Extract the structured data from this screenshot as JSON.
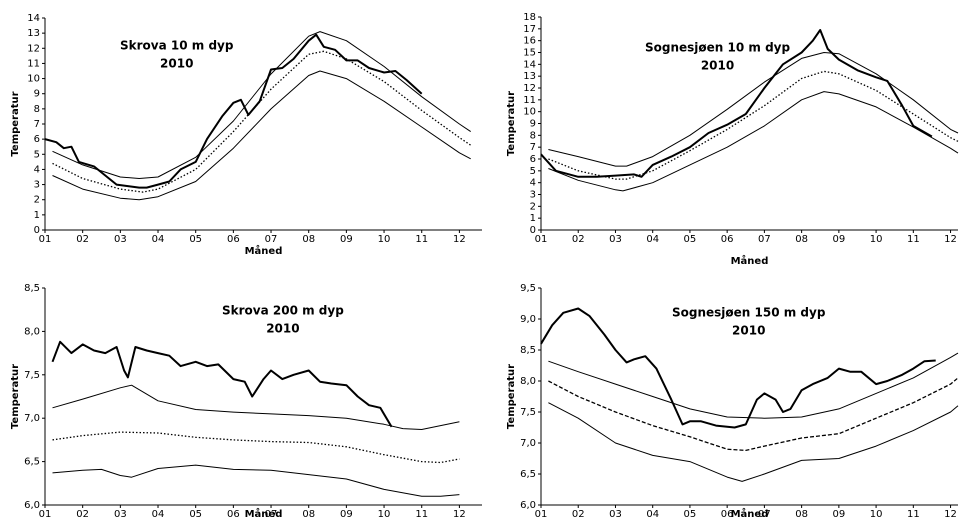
{
  "chart_data": [
    {
      "type": "line",
      "title": "Skrova 10 m dyp",
      "subtitle": "2010",
      "x_label": "Måned",
      "y_label": "Temperatur",
      "xlim": [
        1,
        12.6
      ],
      "xticks": [
        {
          "value": 1,
          "label": "01"
        },
        {
          "value": 2,
          "label": "02"
        },
        {
          "value": 3,
          "label": "03"
        },
        {
          "value": 4,
          "label": "04"
        },
        {
          "value": 5,
          "label": "05"
        },
        {
          "value": 6,
          "label": "06"
        },
        {
          "value": 7,
          "label": "07"
        },
        {
          "value": 8,
          "label": "08"
        },
        {
          "value": 9,
          "label": "09"
        },
        {
          "value": 10,
          "label": "10"
        },
        {
          "value": 11,
          "label": "11"
        },
        {
          "value": 12,
          "label": "12"
        }
      ],
      "ylim": [
        0,
        14
      ],
      "yticks": [
        0,
        1,
        2,
        3,
        4,
        5,
        6,
        7,
        8,
        9,
        10,
        11,
        12,
        13,
        14
      ],
      "series": [
        {
          "color": "#000",
          "width": 2,
          "dash": "solid",
          "x": [
            1,
            1.3,
            1.5,
            1.7,
            1.9,
            2.3,
            2.6,
            2.9,
            3.2,
            3.5,
            3.7,
            4,
            4.3,
            4.6,
            5,
            5.3,
            5.7,
            6,
            6.2,
            6.4,
            6.7,
            7,
            7.3,
            7.6,
            8,
            8.2,
            8.4,
            8.7,
            9,
            9.3,
            9.6,
            10,
            10.3,
            10.6,
            11
          ],
          "values": [
            6,
            5.8,
            5.4,
            5.5,
            4.5,
            4.2,
            3.6,
            3,
            2.9,
            2.8,
            2.8,
            3,
            3.2,
            4,
            4.5,
            6,
            7.5,
            8.4,
            8.6,
            7.6,
            8.5,
            10.6,
            10.7,
            11.3,
            12.5,
            12.9,
            12.1,
            11.9,
            11.2,
            11.2,
            10.7,
            10.4,
            10.5,
            9.9,
            9
          ]
        },
        {
          "color": "#000",
          "width": 1,
          "dash": "solid",
          "x": [
            1.2,
            2,
            3,
            3.5,
            4,
            5,
            6,
            7,
            8,
            8.3,
            9,
            10,
            11,
            12,
            12.3
          ],
          "values": [
            5.2,
            4.3,
            3.5,
            3.4,
            3.5,
            4.8,
            7.2,
            10.3,
            12.8,
            13.1,
            12.5,
            10.8,
            8.8,
            7,
            6.5
          ]
        },
        {
          "color": "#000",
          "width": 1.3,
          "dash": "dotted",
          "x": [
            1.2,
            2,
            3,
            3.6,
            4,
            5,
            6,
            7,
            8,
            8.4,
            9,
            10,
            11,
            12,
            12.3
          ],
          "values": [
            4.4,
            3.4,
            2.7,
            2.5,
            2.7,
            4,
            6.5,
            9.3,
            11.6,
            11.8,
            11.3,
            9.8,
            7.9,
            6.1,
            5.6
          ]
        },
        {
          "color": "#000",
          "width": 1,
          "dash": "solid",
          "x": [
            1.2,
            2,
            3,
            3.5,
            4,
            5,
            6,
            7,
            8,
            8.3,
            9,
            10,
            11,
            12,
            12.3
          ],
          "values": [
            3.6,
            2.7,
            2.1,
            2,
            2.2,
            3.2,
            5.4,
            8,
            10.2,
            10.5,
            10,
            8.5,
            6.8,
            5.1,
            4.7
          ]
        }
      ]
    },
    {
      "type": "line",
      "title": "Sognesjøen 10 m dyp",
      "subtitle": "2010",
      "x_label": "Måned",
      "y_label": "Temperatur",
      "xlim": [
        1,
        12.2
      ],
      "xticks": [
        {
          "value": 1,
          "label": "01"
        },
        {
          "value": 2,
          "label": "02"
        },
        {
          "value": 3,
          "label": "03"
        },
        {
          "value": 4,
          "label": "04"
        },
        {
          "value": 5,
          "label": "05"
        },
        {
          "value": 6,
          "label": "06"
        },
        {
          "value": 7,
          "label": "07"
        },
        {
          "value": 8,
          "label": "08"
        },
        {
          "value": 9,
          "label": "09"
        },
        {
          "value": 10,
          "label": "10"
        },
        {
          "value": 11,
          "label": "11"
        },
        {
          "value": 12,
          "label": "12"
        }
      ],
      "ylim": [
        0,
        18
      ],
      "yticks": [
        0,
        1,
        2,
        3,
        4,
        5,
        6,
        7,
        8,
        9,
        10,
        11,
        12,
        13,
        14,
        15,
        16,
        17,
        18
      ],
      "series": [
        {
          "color": "#000",
          "width": 2,
          "dash": "solid",
          "x": [
            1,
            1.4,
            2,
            2.5,
            3,
            3.5,
            3.7,
            4,
            4.5,
            5,
            5.5,
            6,
            6.5,
            7,
            7.5,
            8,
            8.3,
            8.5,
            8.7,
            9,
            9.5,
            10,
            10.3,
            10.7,
            11,
            11.5
          ],
          "values": [
            6.4,
            5,
            4.5,
            4.5,
            4.6,
            4.7,
            4.5,
            5.5,
            6.2,
            7,
            8.2,
            8.9,
            9.8,
            12,
            14,
            15,
            16,
            16.9,
            15.3,
            14.4,
            13.5,
            12.9,
            12.6,
            10.5,
            8.8,
            7.9
          ]
        },
        {
          "color": "#000",
          "width": 1,
          "dash": "solid",
          "x": [
            1.2,
            2,
            3,
            3.3,
            4,
            5,
            6,
            7,
            8,
            8.6,
            9,
            10,
            11,
            12,
            12.2
          ],
          "values": [
            6.8,
            6.2,
            5.4,
            5.4,
            6.2,
            8,
            10.2,
            12.5,
            14.5,
            15,
            14.9,
            13.2,
            11,
            8.5,
            8.2
          ]
        },
        {
          "color": "#000",
          "width": 1.3,
          "dash": "dotted",
          "x": [
            1.2,
            2,
            3,
            3.3,
            4,
            5,
            6,
            7,
            8,
            8.6,
            9,
            10,
            11,
            12,
            12.2
          ],
          "values": [
            6,
            5,
            4.3,
            4.3,
            5,
            6.7,
            8.5,
            10.5,
            12.8,
            13.4,
            13.2,
            11.8,
            9.8,
            7.8,
            7.5
          ]
        },
        {
          "color": "#000",
          "width": 1,
          "dash": "solid",
          "x": [
            1.2,
            2,
            3,
            3.2,
            4,
            5,
            6,
            7,
            8,
            8.6,
            9,
            10,
            11,
            12,
            12.2
          ],
          "values": [
            5.2,
            4.2,
            3.4,
            3.3,
            4,
            5.5,
            7,
            8.8,
            11,
            11.7,
            11.5,
            10.4,
            8.7,
            6.9,
            6.5
          ]
        }
      ]
    },
    {
      "type": "line",
      "title": "Skrova 200 m dyp",
      "subtitle": "2010",
      "x_label": "Måned",
      "y_label": "Temperatur",
      "xlim": [
        1,
        12.6
      ],
      "xticks": [
        {
          "value": 1,
          "label": "01"
        },
        {
          "value": 2,
          "label": "02"
        },
        {
          "value": 3,
          "label": "03"
        },
        {
          "value": 4,
          "label": "04"
        },
        {
          "value": 5,
          "label": "05"
        },
        {
          "value": 6,
          "label": "06"
        },
        {
          "value": 7,
          "label": "07"
        },
        {
          "value": 8,
          "label": "08"
        },
        {
          "value": 9,
          "label": "09"
        },
        {
          "value": 10,
          "label": "10"
        },
        {
          "value": 11,
          "label": "11"
        },
        {
          "value": 12,
          "label": "12"
        }
      ],
      "ylim": [
        6,
        8.5
      ],
      "yticks": [
        {
          "value": 6,
          "label": "6,0"
        },
        {
          "value": 6.5,
          "label": "6,5"
        },
        {
          "value": 7,
          "label": "7,0"
        },
        {
          "value": 7.5,
          "label": "7,5"
        },
        {
          "value": 8,
          "label": "8,0"
        },
        {
          "value": 8.5,
          "label": "8,5"
        }
      ],
      "series": [
        {
          "color": "#000",
          "width": 2,
          "dash": "solid",
          "x": [
            1.2,
            1.4,
            1.7,
            2,
            2.3,
            2.6,
            2.9,
            3.1,
            3.2,
            3.4,
            3.7,
            4,
            4.3,
            4.6,
            5,
            5.3,
            5.6,
            6,
            6.3,
            6.5,
            6.8,
            7,
            7.3,
            7.6,
            8,
            8.3,
            8.6,
            9,
            9.3,
            9.6,
            9.9,
            10.2
          ],
          "values": [
            7.65,
            7.88,
            7.75,
            7.85,
            7.78,
            7.75,
            7.82,
            7.55,
            7.47,
            7.82,
            7.78,
            7.75,
            7.72,
            7.6,
            7.65,
            7.6,
            7.62,
            7.45,
            7.42,
            7.25,
            7.45,
            7.55,
            7.45,
            7.5,
            7.55,
            7.42,
            7.4,
            7.38,
            7.25,
            7.15,
            7.12,
            6.9
          ]
        },
        {
          "color": "#000",
          "width": 1,
          "dash": "solid",
          "x": [
            1.2,
            2,
            3,
            3.3,
            4,
            5,
            6,
            7,
            8,
            9,
            10,
            10.5,
            11,
            12
          ],
          "values": [
            7.12,
            7.22,
            7.35,
            7.38,
            7.2,
            7.1,
            7.07,
            7.05,
            7.03,
            7,
            6.93,
            6.88,
            6.87,
            6.96
          ]
        },
        {
          "color": "#000",
          "width": 1.3,
          "dash": "dotted",
          "x": [
            1.2,
            2,
            3,
            4,
            5,
            6,
            7,
            8,
            9,
            10,
            11,
            11.5,
            12
          ],
          "values": [
            6.75,
            6.8,
            6.84,
            6.83,
            6.78,
            6.75,
            6.73,
            6.72,
            6.67,
            6.58,
            6.5,
            6.49,
            6.53
          ]
        },
        {
          "color": "#000",
          "width": 1,
          "dash": "solid",
          "x": [
            1.2,
            2,
            2.5,
            3,
            3.3,
            4,
            5,
            6,
            7,
            8,
            9,
            10,
            11,
            11.5,
            12
          ],
          "values": [
            6.37,
            6.4,
            6.41,
            6.34,
            6.32,
            6.42,
            6.46,
            6.41,
            6.4,
            6.35,
            6.3,
            6.18,
            6.1,
            6.1,
            6.12
          ]
        }
      ]
    },
    {
      "type": "line",
      "title": "Sognesjøen 150 m dyp",
      "subtitle": "2010",
      "x_label": "Måned",
      "y_label": "Temperatur",
      "xlim": [
        1,
        12.2
      ],
      "xticks": [
        {
          "value": 1,
          "label": "01"
        },
        {
          "value": 2,
          "label": "02"
        },
        {
          "value": 3,
          "label": "03"
        },
        {
          "value": 4,
          "label": "04"
        },
        {
          "value": 5,
          "label": "05"
        },
        {
          "value": 6,
          "label": "06"
        },
        {
          "value": 7,
          "label": "07"
        },
        {
          "value": 8,
          "label": "08"
        },
        {
          "value": 9,
          "label": "09"
        },
        {
          "value": 10,
          "label": "10"
        },
        {
          "value": 11,
          "label": "11"
        },
        {
          "value": 12,
          "label": "12"
        }
      ],
      "ylim": [
        6,
        9.5
      ],
      "yticks": [
        {
          "value": 6,
          "label": "6,0"
        },
        {
          "value": 6.5,
          "label": "6,5"
        },
        {
          "value": 7,
          "label": "7,0"
        },
        {
          "value": 7.5,
          "label": "7,5"
        },
        {
          "value": 8,
          "label": "8,0"
        },
        {
          "value": 8.5,
          "label": "8,5"
        },
        {
          "value": 9,
          "label": "9,0"
        },
        {
          "value": 9.5,
          "label": "9,5"
        }
      ],
      "series": [
        {
          "color": "#000",
          "width": 2,
          "dash": "solid",
          "x": [
            1,
            1.3,
            1.6,
            2,
            2.3,
            2.7,
            3,
            3.3,
            3.5,
            3.8,
            4.1,
            4.5,
            4.8,
            5,
            5.3,
            5.7,
            6.2,
            6.5,
            6.8,
            7,
            7.3,
            7.5,
            7.7,
            8,
            8.3,
            8.7,
            9,
            9.3,
            9.6,
            10,
            10.3,
            10.7,
            11,
            11.3,
            11.6
          ],
          "values": [
            8.6,
            8.9,
            9.1,
            9.17,
            9.05,
            8.75,
            8.5,
            8.3,
            8.35,
            8.4,
            8.2,
            7.7,
            7.3,
            7.35,
            7.35,
            7.28,
            7.25,
            7.3,
            7.7,
            7.8,
            7.7,
            7.5,
            7.55,
            7.85,
            7.95,
            8.05,
            8.2,
            8.15,
            8.15,
            7.95,
            8,
            8.1,
            8.2,
            8.32,
            8.33
          ]
        },
        {
          "color": "#000",
          "width": 1,
          "dash": "solid",
          "x": [
            1.2,
            2,
            3,
            4,
            5,
            6,
            7,
            8,
            9,
            10,
            11,
            12,
            12.2
          ],
          "values": [
            8.32,
            8.15,
            7.95,
            7.75,
            7.55,
            7.42,
            7.4,
            7.42,
            7.55,
            7.8,
            8.05,
            8.38,
            8.45
          ]
        },
        {
          "color": "#000",
          "width": 1.3,
          "dash": "dashed",
          "x": [
            1.2,
            2,
            3,
            4,
            5,
            6,
            6.5,
            7,
            8,
            9,
            10,
            11,
            12,
            12.2
          ],
          "values": [
            8,
            7.75,
            7.5,
            7.28,
            7.1,
            6.9,
            6.88,
            6.95,
            7.08,
            7.15,
            7.4,
            7.65,
            7.95,
            8.05
          ]
        },
        {
          "color": "#000",
          "width": 1,
          "dash": "solid",
          "x": [
            1.2,
            2,
            3,
            4,
            5,
            6,
            6.4,
            7,
            8,
            9,
            10,
            11,
            12,
            12.2
          ],
          "values": [
            7.65,
            7.4,
            7,
            6.8,
            6.7,
            6.45,
            6.38,
            6.5,
            6.72,
            6.75,
            6.95,
            7.2,
            7.5,
            7.6
          ]
        }
      ]
    }
  ]
}
